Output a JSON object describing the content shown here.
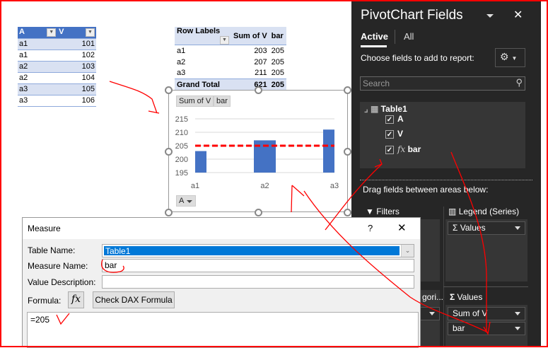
{
  "source_table": {
    "headers": [
      "A",
      "V"
    ],
    "rows": [
      [
        "a1",
        "101"
      ],
      [
        "a1",
        "102"
      ],
      [
        "a2",
        "103"
      ],
      [
        "a2",
        "104"
      ],
      [
        "a3",
        "105"
      ],
      [
        "a3",
        "106"
      ]
    ]
  },
  "pivot_table": {
    "headers": [
      "Row Labels",
      "Sum of V",
      "bar"
    ],
    "rows": [
      [
        "a1",
        "203",
        "205"
      ],
      [
        "a2",
        "207",
        "205"
      ],
      [
        "a3",
        "211",
        "205"
      ]
    ],
    "total": [
      "Grand Total",
      "621",
      "205"
    ]
  },
  "chart_buttons": {
    "sum_of_v": "Sum of V",
    "bar": "bar",
    "axis_field": "A"
  },
  "chart_data": {
    "type": "bar",
    "categories": [
      "a1",
      "a2",
      "a3"
    ],
    "series": [
      {
        "name": "Sum of V",
        "type": "bar",
        "values": [
          203,
          207,
          211
        ],
        "color": "#4472c4"
      },
      {
        "name": "bar",
        "type": "line",
        "style": "dashed",
        "values": [
          205,
          205,
          205
        ],
        "color": "#ff0000"
      }
    ],
    "ylim": [
      195,
      215
    ],
    "yticks": [
      "215",
      "210",
      "205",
      "200",
      "195"
    ],
    "grid": true
  },
  "pane": {
    "title": "PivotChart Fields",
    "tabs": [
      "Active",
      "All"
    ],
    "active_tab": "Active",
    "choose_label": "Choose fields to add to report:",
    "search_placeholder": "Search",
    "table_name": "Table1",
    "fields": [
      {
        "name": "A",
        "checked": true
      },
      {
        "name": "V",
        "checked": true
      },
      {
        "name": "bar",
        "checked": true,
        "measure": true
      }
    ],
    "drag_label": "Drag fields between areas below:",
    "filters_label": "Filters",
    "legend_label": "Legend (Series)",
    "legend_items": [
      "Values"
    ],
    "axis_label_partial": "gori...",
    "values_label": "Values",
    "values_items": [
      "Sum of V",
      "bar"
    ]
  },
  "dialog": {
    "title": "Measure",
    "help": "?",
    "table_name_label": "Table Name:",
    "table_name_value": "Table1",
    "measure_name_label": "Measure Name:",
    "measure_name_value": "bar",
    "value_desc_label": "Value Description:",
    "value_desc_value": "",
    "formula_label": "Formula:",
    "fx_label": "fx",
    "check_dax_label": "Check DAX Formula",
    "formula_value": "=205"
  },
  "colors": {
    "accent": "#4472c4",
    "annotation": "#ff0000",
    "selection": "#0078d7",
    "pane_bg": "#262626"
  }
}
